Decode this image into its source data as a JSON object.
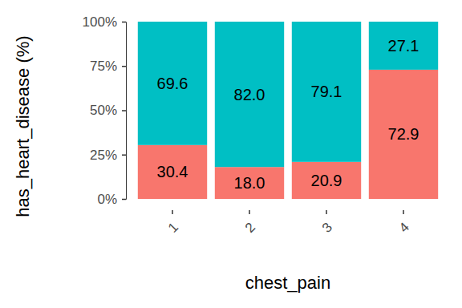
{
  "chart_data": {
    "type": "bar",
    "stacked": true,
    "data_labels": true,
    "x_label": "chest_pain",
    "y_label": "has_heart_disease (%)",
    "categories": [
      "1",
      "2",
      "3",
      "4"
    ],
    "series": [
      {
        "color": "#F8766D",
        "values": [
          30.4,
          18.0,
          20.9,
          72.9
        ],
        "value_labels": [
          "30.4",
          "18.0",
          "20.9",
          "72.9"
        ]
      },
      {
        "color": "#00BFC4",
        "values": [
          69.6,
          82.0,
          79.1,
          27.1
        ],
        "value_labels": [
          "69.6",
          "82.0",
          "79.1",
          "27.1"
        ]
      }
    ],
    "ylim": [
      0,
      100
    ],
    "yticks": [
      {
        "value": 0,
        "label": "0%"
      },
      {
        "value": 25,
        "label": "25%"
      },
      {
        "value": 50,
        "label": "50%"
      },
      {
        "value": 75,
        "label": "75%"
      },
      {
        "value": 100,
        "label": "100%"
      }
    ],
    "grid": false
  }
}
